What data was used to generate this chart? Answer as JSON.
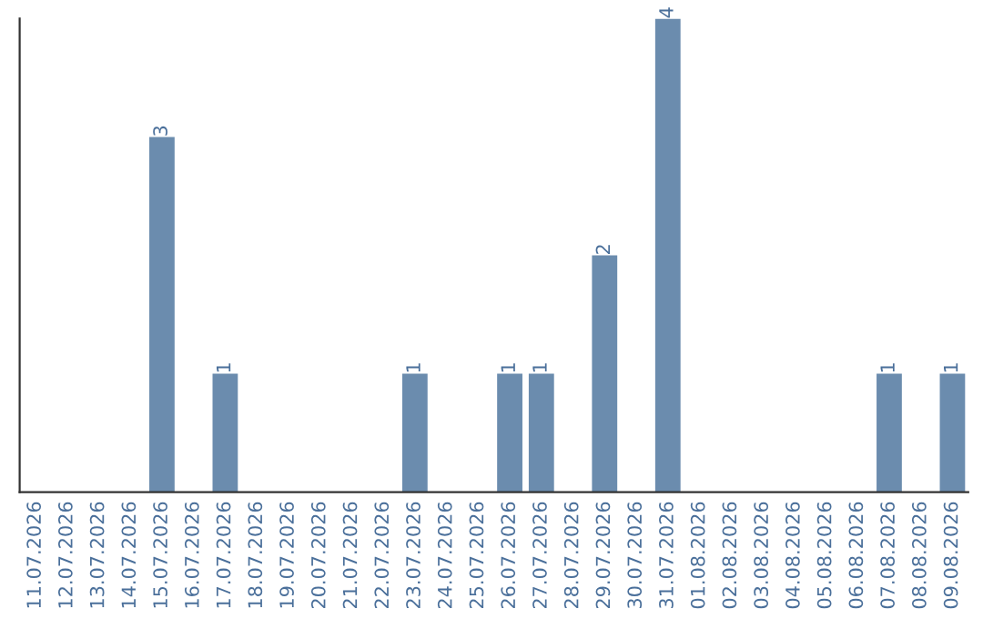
{
  "chart_data": {
    "type": "bar",
    "categories": [
      "11.07.2026",
      "12.07.2026",
      "13.07.2026",
      "14.07.2026",
      "15.07.2026",
      "16.07.2026",
      "17.07.2026",
      "18.07.2026",
      "19.07.2026",
      "20.07.2026",
      "21.07.2026",
      "22.07.2026",
      "23.07.2026",
      "24.07.2026",
      "25.07.2026",
      "26.07.2026",
      "27.07.2026",
      "28.07.2026",
      "29.07.2026",
      "30.07.2026",
      "31.07.2026",
      "01.08.2026",
      "02.08.2026",
      "03.08.2026",
      "04.08.2026",
      "05.08.2026",
      "06.08.2026",
      "07.08.2026",
      "08.08.2026",
      "09.08.2026"
    ],
    "values": [
      0,
      0,
      0,
      0,
      3,
      0,
      1,
      0,
      0,
      0,
      0,
      0,
      1,
      0,
      0,
      1,
      1,
      0,
      2,
      0,
      4,
      0,
      0,
      0,
      0,
      0,
      0,
      1,
      0,
      1
    ],
    "value_labels": [
      null,
      null,
      null,
      null,
      "3",
      null,
      "1",
      null,
      null,
      null,
      null,
      null,
      "1",
      null,
      null,
      "1",
      "1",
      null,
      "2",
      null,
      "4",
      null,
      null,
      null,
      null,
      null,
      null,
      "1",
      null,
      "1"
    ],
    "color": "#6b8cae",
    "tick_labels": "x",
    "grid": false,
    "legend": false
  }
}
